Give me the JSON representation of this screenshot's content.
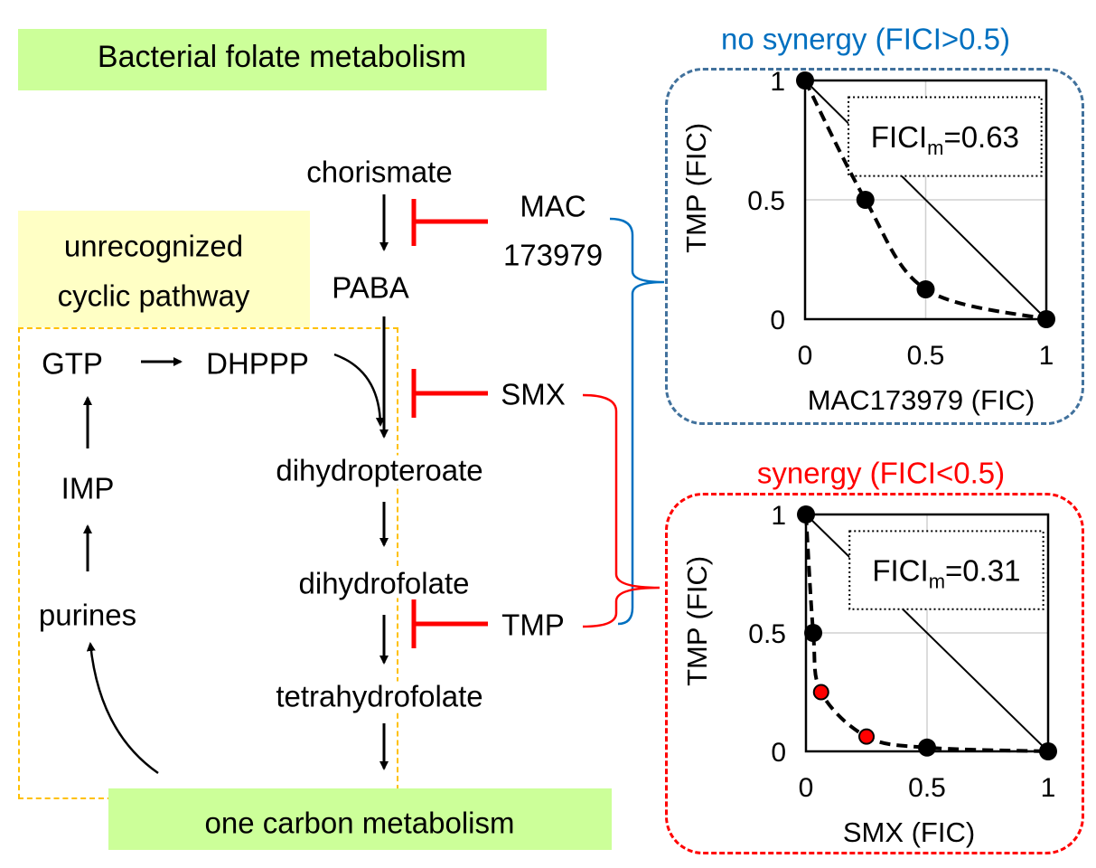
{
  "title": "Bacterial folate metabolism",
  "cyclic_label": [
    "unrecognized",
    "cyclic pathway"
  ],
  "bottom_label": "one carbon metabolism",
  "pathway": [
    "chorismate",
    "PABA",
    "dihydropteroate",
    "dihydrofolate",
    "tetrahydrofolate"
  ],
  "cycle": {
    "gtp": "GTP",
    "dhppp": "DHPPP",
    "imp": "IMP",
    "purines": "purines"
  },
  "inhibitors": {
    "mac": [
      "MAC",
      "173979"
    ],
    "smx": "SMX",
    "tmp": "TMP"
  },
  "colors": {
    "green": "#ccff99",
    "yellow": "#ffffc5",
    "orange": "#ffc000",
    "red": "#ff0000",
    "blue": "#0070c0",
    "blue_box": "#41719c"
  },
  "chart_data": [
    {
      "type": "scatter",
      "title": "no synergy (FICI>0.5)",
      "xlabel": "MAC173979 (FIC)",
      "ylabel": "TMP (FIC)",
      "xlim": [
        0,
        1
      ],
      "ylim": [
        0,
        1
      ],
      "xticks": [
        "0",
        "0.5",
        "1"
      ],
      "yticks": [
        "0",
        "0.5",
        "1"
      ],
      "grid": true,
      "annotation": {
        "main": "FICI",
        "sub": "m",
        "value": "=0.63"
      },
      "points": [
        {
          "x": 0,
          "y": 1,
          "color": "black"
        },
        {
          "x": 0.25,
          "y": 0.5,
          "color": "black"
        },
        {
          "x": 0.5,
          "y": 0.125,
          "color": "black"
        },
        {
          "x": 1,
          "y": 0,
          "color": "black"
        }
      ]
    },
    {
      "type": "scatter",
      "title": "synergy (FICI<0.5)",
      "xlabel": "SMX (FIC)",
      "ylabel": "TMP (FIC)",
      "xlim": [
        0,
        1
      ],
      "ylim": [
        0,
        1
      ],
      "xticks": [
        "0",
        "0.5",
        "1"
      ],
      "yticks": [
        "0",
        "0.5",
        "1"
      ],
      "grid": true,
      "annotation": {
        "main": "FICI",
        "sub": "m",
        "value": "=0.31"
      },
      "points": [
        {
          "x": 0,
          "y": 1,
          "color": "black"
        },
        {
          "x": 0.03,
          "y": 0.5,
          "color": "black"
        },
        {
          "x": 0.0625,
          "y": 0.25,
          "color": "red"
        },
        {
          "x": 0.25,
          "y": 0.0625,
          "color": "red"
        },
        {
          "x": 0.5,
          "y": 0.016,
          "color": "black"
        },
        {
          "x": 1,
          "y": 0,
          "color": "black"
        }
      ]
    }
  ]
}
